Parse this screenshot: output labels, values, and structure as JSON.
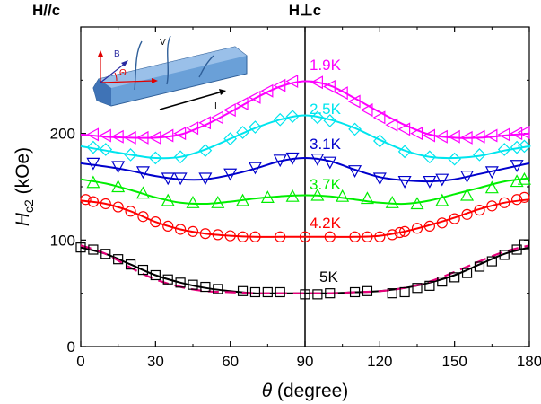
{
  "chart_data": {
    "type": "scatter",
    "title": "",
    "xlabel": {
      "symbol": "θ",
      "unit": " (degree)"
    },
    "ylabel": {
      "symbol": "H",
      "subscript": "c2",
      "unit": " (kOe)"
    },
    "xlim": [
      0,
      180
    ],
    "ylim": [
      0,
      300
    ],
    "x_ticks": [
      0,
      30,
      60,
      90,
      120,
      150,
      180
    ],
    "y_ticks": [
      0,
      100,
      200
    ],
    "grid": false,
    "vertical_line_x": 90,
    "top_labels": {
      "left": "H//c",
      "center": "H⊥c"
    },
    "inset": {
      "labels": [
        "B",
        "Θ",
        "V",
        "I"
      ]
    },
    "series": [
      {
        "name": "1.9K",
        "color": "#ff00ff",
        "marker": "triangle-left",
        "x": [
          5,
          10,
          15,
          20,
          25,
          30,
          35,
          40,
          45,
          50,
          55,
          60,
          65,
          70,
          75,
          80,
          85,
          95,
          100,
          105,
          110,
          115,
          120,
          125,
          130,
          135,
          140,
          145,
          150,
          155,
          160,
          165,
          170,
          175,
          178
        ],
        "y": [
          199,
          198,
          197,
          196,
          196,
          196,
          198,
          200,
          205,
          210,
          215,
          222,
          228,
          234,
          240,
          245,
          249,
          248,
          244,
          238,
          230,
          222,
          215,
          208,
          204,
          200,
          198,
          197,
          197,
          196,
          197,
          198,
          199,
          200,
          201
        ]
      },
      {
        "name": "2.5K",
        "color": "#00e5ee",
        "marker": "diamond",
        "x": [
          5,
          10,
          20,
          30,
          40,
          50,
          60,
          65,
          70,
          80,
          85,
          95,
          100,
          110,
          120,
          130,
          140,
          150,
          160,
          170,
          175,
          178
        ],
        "y": [
          187,
          185,
          180,
          177,
          178,
          184,
          195,
          201,
          206,
          213,
          216,
          215,
          212,
          204,
          193,
          183,
          178,
          176,
          180,
          185,
          187,
          188
        ]
      },
      {
        "name": "3.1K",
        "color": "#0000cc",
        "marker": "triangle-down",
        "x": [
          5,
          15,
          25,
          35,
          40,
          50,
          60,
          70,
          80,
          85,
          95,
          100,
          110,
          120,
          130,
          140,
          145,
          155,
          165,
          175
        ],
        "y": [
          172,
          169,
          164,
          158,
          158,
          158,
          162,
          168,
          175,
          177,
          176,
          173,
          165,
          158,
          155,
          155,
          157,
          160,
          164,
          170
        ]
      },
      {
        "name": "3.7K",
        "color": "#00ee00",
        "marker": "triangle-up",
        "x": [
          5,
          15,
          25,
          35,
          45,
          55,
          65,
          75,
          85,
          95,
          105,
          115,
          125,
          135,
          145,
          155,
          165,
          175,
          178
        ],
        "y": [
          154,
          150,
          144,
          137,
          135,
          135,
          137,
          140,
          141,
          142,
          141,
          139,
          135,
          134,
          137,
          142,
          149,
          155,
          157
        ]
      },
      {
        "name": "4.2K",
        "color": "#ff0000",
        "marker": "circle",
        "x": [
          2,
          5,
          10,
          15,
          20,
          25,
          30,
          35,
          40,
          45,
          50,
          55,
          60,
          65,
          70,
          80,
          90,
          100,
          110,
          115,
          120,
          125,
          128,
          130,
          135,
          140,
          145,
          150,
          155,
          160,
          165,
          170,
          175,
          178
        ],
        "y": [
          138,
          136,
          134,
          131,
          127,
          122,
          117,
          113,
          110,
          108,
          106,
          105,
          104,
          103,
          103,
          103,
          103,
          103,
          103,
          103,
          103,
          105,
          107,
          108,
          111,
          113,
          116,
          120,
          124,
          128,
          132,
          135,
          138,
          140
        ]
      },
      {
        "name": "5K",
        "color": "#000000",
        "marker": "square",
        "x": [
          0,
          5,
          10,
          15,
          20,
          25,
          30,
          35,
          40,
          45,
          50,
          55,
          65,
          70,
          75,
          80,
          90,
          95,
          100,
          110,
          115,
          125,
          130,
          135,
          140,
          145,
          150,
          155,
          160,
          165,
          170,
          175,
          178
        ],
        "y": [
          93,
          91,
          87,
          82,
          77,
          72,
          67,
          63,
          60,
          58,
          56,
          54,
          52,
          51,
          51,
          51,
          49,
          49,
          50,
          51,
          52,
          50,
          51,
          55,
          57,
          61,
          65,
          69,
          75,
          80,
          86,
          91,
          96
        ]
      }
    ],
    "fit_curves": [
      {
        "series": "1.9K",
        "color": "#ff00ff",
        "style": "solid",
        "x": [
          0,
          10,
          20,
          30,
          40,
          50,
          60,
          70,
          80,
          90,
          100,
          110,
          120,
          130,
          140,
          150,
          160,
          170,
          180
        ],
        "y": [
          199,
          197,
          196,
          196,
          199,
          208,
          220,
          233,
          244,
          249,
          245,
          233,
          220,
          208,
          199,
          196,
          196,
          198,
          200
        ]
      },
      {
        "series": "2.5K",
        "color": "#00e5ee",
        "style": "solid",
        "x": [
          0,
          10,
          20,
          30,
          40,
          50,
          60,
          70,
          80,
          90,
          100,
          110,
          120,
          130,
          140,
          150,
          160,
          170,
          180
        ],
        "y": [
          188,
          184,
          180,
          177,
          178,
          185,
          195,
          205,
          213,
          217,
          213,
          205,
          194,
          184,
          178,
          177,
          179,
          184,
          188
        ]
      },
      {
        "series": "3.1K",
        "color": "#0000cc",
        "style": "solid",
        "x": [
          0,
          10,
          20,
          30,
          40,
          50,
          60,
          70,
          80,
          90,
          100,
          110,
          120,
          130,
          140,
          150,
          160,
          170,
          180
        ],
        "y": [
          172,
          169,
          165,
          160,
          157,
          157,
          161,
          167,
          174,
          177,
          174,
          166,
          159,
          156,
          155,
          157,
          162,
          167,
          172
        ]
      },
      {
        "series": "3.7K",
        "color": "#00ee00",
        "style": "solid",
        "x": [
          0,
          10,
          20,
          30,
          40,
          50,
          60,
          70,
          80,
          90,
          100,
          110,
          120,
          130,
          140,
          150,
          160,
          170,
          180
        ],
        "y": [
          157,
          153,
          147,
          140,
          135,
          134,
          136,
          139,
          141,
          142,
          141,
          138,
          135,
          134,
          137,
          143,
          149,
          155,
          158
        ]
      },
      {
        "series": "4.2K",
        "color": "#ff0000",
        "style": "solid",
        "x": [
          0,
          10,
          20,
          30,
          40,
          50,
          60,
          70,
          80,
          90,
          100,
          110,
          120,
          130,
          140,
          150,
          160,
          170,
          180
        ],
        "y": [
          137,
          134,
          127,
          117,
          110,
          106,
          104,
          103,
          103,
          103,
          103,
          103,
          104,
          108,
          114,
          121,
          129,
          135,
          138
        ]
      },
      {
        "series": "5K",
        "color": "#000000",
        "style": "solid",
        "x": [
          0,
          10,
          20,
          30,
          40,
          50,
          60,
          70,
          80,
          90,
          100,
          110,
          120,
          130,
          140,
          150,
          160,
          170,
          180
        ],
        "y": [
          93,
          87,
          77,
          67,
          60,
          55,
          52,
          50,
          50,
          50,
          50,
          51,
          52,
          55,
          60,
          67,
          77,
          87,
          93
        ]
      },
      {
        "series": "5K",
        "color": "#e6007a",
        "style": "dashed",
        "x": [
          0,
          10,
          20,
          30,
          40,
          50,
          60,
          70,
          80,
          90,
          100,
          110,
          120,
          130,
          140,
          150,
          160,
          170,
          180
        ],
        "y": [
          95,
          87,
          74,
          63,
          56,
          52,
          51,
          50,
          50,
          50,
          50,
          51,
          52,
          55,
          61,
          70,
          80,
          89,
          95
        ]
      }
    ]
  }
}
